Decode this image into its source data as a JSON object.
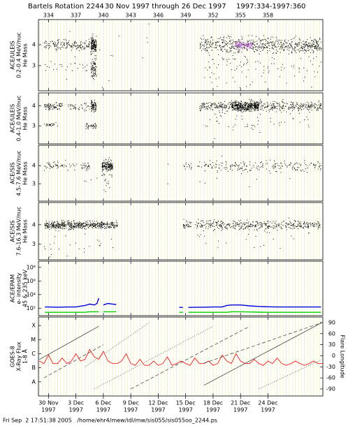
{
  "title": [
    "Bartels Rotation 2244",
    "30 Nov 1997 through 26 Dec 1997",
    "1997:334-1997:360"
  ],
  "footer": "Fri Sep  2 17:51:38 2005   /home/ehr4/mew/idl/mw/sis055/sis055oo_2244.ps",
  "xaxis": {
    "xlim": [
      332.9,
      364
    ],
    "top_ticks": [
      334,
      337,
      340,
      343,
      346,
      349,
      352,
      355,
      358
    ],
    "bottom_ticks": [
      {
        "value": 334,
        "label": "30 Nov",
        "year": "1997"
      },
      {
        "value": 337,
        "label": "3 Dec",
        "year": "1997"
      },
      {
        "value": 340,
        "label": "6 Dec",
        "year": "1997"
      },
      {
        "value": 343,
        "label": "9 Dec",
        "year": "1997"
      },
      {
        "value": 346,
        "label": "12 Dec",
        "year": "1997"
      },
      {
        "value": 349,
        "label": "15 Dec",
        "year": "1997"
      },
      {
        "value": 352,
        "label": "18 Dec",
        "year": "1997"
      },
      {
        "value": 355,
        "label": "21 Dec",
        "year": "1997"
      },
      {
        "value": 358,
        "label": "24 Dec",
        "year": "1997"
      }
    ]
  },
  "chart_data": [
    {
      "type": "cluster",
      "ylabel": [
        "ACE/ULEIS",
        "0.2-0.4 MeV/nuc",
        "He Mass"
      ],
      "ylim": [
        1.8,
        5.2
      ],
      "yticks": [
        4,
        3
      ],
      "clusters": [
        {
          "x0": 333.5,
          "x1": 338.5,
          "y": 4.0,
          "spread": 0.12,
          "points": 150,
          "color": "#000000"
        },
        {
          "x0": 333.5,
          "x1": 338.5,
          "y": 3.0,
          "spread": 0.1,
          "points": 25,
          "color": "#000000"
        },
        {
          "x0": 338.6,
          "x1": 339.2,
          "y": 4.0,
          "spread": 0.2,
          "points": 150,
          "color": "#000000"
        },
        {
          "x0": 338.6,
          "x1": 339.2,
          "y": 2.9,
          "spread": 0.25,
          "points": 80,
          "color": "#000000"
        },
        {
          "x0": 334,
          "x1": 345,
          "y": 3.5,
          "spread": 0.9,
          "points": 25,
          "color": "#000000"
        },
        {
          "x0": 350.5,
          "x1": 363.8,
          "y": 4.0,
          "spread": 0.18,
          "points": 600,
          "color": "#000000"
        },
        {
          "x0": 351,
          "x1": 363.8,
          "y": 3.0,
          "spread": 0.5,
          "points": 120,
          "color": "#000000"
        },
        {
          "x0": 354.4,
          "x1": 356.2,
          "y": 4.0,
          "spread": 0.08,
          "points": 120,
          "color": "#c060e0"
        }
      ]
    },
    {
      "type": "cluster",
      "ylabel": [
        "ACE/ULEIS",
        "0.4-1.0 MeV/nuc",
        "He Mass"
      ],
      "ylim": [
        2.1,
        4.65
      ],
      "yticks": [
        4,
        3
      ],
      "clusters": [
        {
          "x0": 333.5,
          "x1": 335.5,
          "y": 4.0,
          "spread": 0.08,
          "points": 80,
          "color": "#000000"
        },
        {
          "x0": 336,
          "x1": 338.5,
          "y": 4.0,
          "spread": 0.1,
          "points": 40,
          "color": "#000000"
        },
        {
          "x0": 338.6,
          "x1": 339.2,
          "y": 4.0,
          "spread": 0.15,
          "points": 80,
          "color": "#000000"
        },
        {
          "x0": 333.5,
          "x1": 335,
          "y": 3.05,
          "spread": 0.05,
          "points": 25,
          "color": "#000000"
        },
        {
          "x0": 338,
          "x1": 339.2,
          "y": 3.0,
          "spread": 0.08,
          "points": 40,
          "color": "#000000"
        },
        {
          "x0": 350.5,
          "x1": 363.8,
          "y": 4.0,
          "spread": 0.12,
          "points": 500,
          "color": "#000000"
        },
        {
          "x0": 354,
          "x1": 357,
          "y": 4.0,
          "spread": 0.12,
          "points": 300,
          "color": "#000000"
        },
        {
          "x0": 351,
          "x1": 363,
          "y": 3.3,
          "spread": 0.4,
          "points": 60,
          "color": "#000000"
        }
      ]
    },
    {
      "type": "cluster",
      "ylabel": [
        "ACE/SIS",
        "4.5-7.6 MeV/nuc",
        "He Mass"
      ],
      "ylim": [
        2.04,
        5.12
      ],
      "yticks": [
        4,
        3
      ],
      "clusters": [
        {
          "x0": 333.5,
          "x1": 338.5,
          "y": 4.0,
          "spread": 0.12,
          "points": 80,
          "color": "#000000"
        },
        {
          "x0": 339.8,
          "x1": 341,
          "y": 4.0,
          "spread": 0.12,
          "points": 150,
          "color": "#000000"
        },
        {
          "x0": 339.8,
          "x1": 341,
          "y": 3.5,
          "spread": 0.5,
          "points": 30,
          "color": "#000000"
        },
        {
          "x0": 348.7,
          "x1": 349.6,
          "y": 3.95,
          "spread": 0.1,
          "points": 15,
          "color": "#000000"
        },
        {
          "x0": 350,
          "x1": 363.8,
          "y": 4.0,
          "spread": 0.15,
          "points": 200,
          "color": "#000000"
        },
        {
          "x0": 334,
          "x1": 363,
          "y": 3.4,
          "spread": 0.5,
          "points": 20,
          "color": "#000000"
        }
      ]
    },
    {
      "type": "cluster",
      "ylabel": [
        "ACE/SIS",
        "7.6-16.3 MeV/nuc",
        "He Mass"
      ],
      "ylim": [
        2.2,
        5.14
      ],
      "yticks": [
        4,
        3
      ],
      "clusters": [
        {
          "x0": 333.5,
          "x1": 341.5,
          "y": 4.0,
          "spread": 0.1,
          "points": 500,
          "color": "#000000"
        },
        {
          "x0": 333.5,
          "x1": 341.5,
          "y": 3.3,
          "spread": 0.4,
          "points": 30,
          "color": "#000000"
        },
        {
          "x0": 348.7,
          "x1": 349.6,
          "y": 4.0,
          "spread": 0.1,
          "points": 30,
          "color": "#000000"
        },
        {
          "x0": 350,
          "x1": 363.8,
          "y": 4.0,
          "spread": 0.12,
          "points": 400,
          "color": "#000000"
        },
        {
          "x0": 350,
          "x1": 363.8,
          "y": 3.3,
          "spread": 0.4,
          "points": 25,
          "color": "#000000"
        }
      ]
    },
    {
      "type": "line",
      "ylabel": [
        "ACE/EPAM",
        "e- intensity",
        "45 & 235 keV"
      ],
      "log": true,
      "ylim": [
        8,
        800000000
      ],
      "yticks": [
        {
          "value": 100000000,
          "label": "10⁸"
        },
        {
          "value": 1000000,
          "label": "10⁶"
        },
        {
          "value": 10000,
          "label": "10⁴"
        },
        {
          "value": 100,
          "label": "10²"
        }
      ],
      "x": [
        333.6,
        334,
        335,
        336,
        337,
        337.5,
        338,
        338.5,
        339,
        339.3,
        339.5,
        339.7,
        340,
        340.5,
        341,
        341.4,
        345,
        348.3,
        348.7,
        349,
        349.3,
        349.6,
        350,
        351,
        352,
        353,
        353.5,
        354,
        355,
        356,
        357,
        358,
        359,
        360,
        361,
        362,
        363.8
      ],
      "series": [
        {
          "color": "#0000e0",
          "values": [
            150,
            150,
            140,
            150,
            150,
            200,
            250,
            400,
            300,
            500,
            3000,
            null,
            300,
            500,
            400,
            350,
            null,
            130,
            130,
            null,
            130,
            130,
            140,
            140,
            150,
            150,
            250,
            300,
            300,
            220,
            180,
            160,
            150,
            150,
            150,
            150,
            150
          ]
        },
        {
          "color": "#00d000",
          "values": [
            25,
            25,
            25,
            25,
            25,
            25,
            25,
            30,
            30,
            30,
            30,
            null,
            30,
            30,
            30,
            30,
            null,
            25,
            25,
            null,
            25,
            25,
            25,
            25,
            25,
            25,
            25,
            30,
            30,
            28,
            26,
            25,
            25,
            25,
            25,
            25,
            25
          ]
        }
      ]
    },
    {
      "type": "goes",
      "ylabel": [
        "GOES-8",
        "X-Ray Flux",
        "1-8 Å"
      ],
      "y2label": "Flare Longitude",
      "log": true,
      "ylim": [
        1e-09,
        0.0004
      ],
      "yticks": [
        {
          "value": 0.0001,
          "label": "X"
        },
        {
          "value": 1e-05,
          "label": "M"
        },
        {
          "value": 1e-06,
          "label": "C"
        },
        {
          "value": 1e-07,
          "label": "B"
        },
        {
          "value": 1e-08,
          "label": "A"
        }
      ],
      "y2lim": [
        -109,
        105
      ],
      "y2ticks": [
        90,
        60,
        30,
        0,
        -30,
        -60,
        -90
      ],
      "x": [
        333,
        333.5,
        334,
        334.5,
        335,
        335.5,
        336,
        336.5,
        337,
        337.5,
        338,
        338.5,
        339,
        339.5,
        340,
        340.5,
        341,
        341.5,
        342,
        342.5,
        343,
        343.5,
        344,
        344.5,
        345,
        345.5,
        346,
        346.5,
        347,
        347.5,
        348,
        348.5,
        349,
        349.5,
        350,
        350.5,
        351,
        351.5,
        352,
        352.5,
        353,
        353.5,
        354,
        354.5,
        355,
        355.5,
        356,
        356.5,
        357,
        357.5,
        358,
        358.5,
        359,
        359.5,
        360,
        360.5,
        361,
        361.5,
        362,
        362.5,
        363,
        363.5,
        364
      ],
      "series": [
        {
          "color": "#ff0000",
          "values": [
            3e-07,
            2e-07,
            8e-07,
            2e-07,
            2e-07,
            5e-07,
            2e-07,
            3e-07,
            1e-06,
            3e-07,
            4e-07,
            2e-06,
            6e-07,
            4e-07,
            1.5e-06,
            3e-07,
            2e-07,
            2e-07,
            3e-07,
            1e-06,
            2e-07,
            1.5e-07,
            4e-07,
            1.5e-07,
            1.5e-07,
            3e-07,
            1.5e-07,
            2e-07,
            6e-07,
            1.5e-07,
            2e-07,
            3e-07,
            2e-07,
            1.5e-07,
            5e-07,
            2e-07,
            2e-07,
            3e-07,
            1.5e-07,
            2e-07,
            8e-07,
            3e-07,
            2e-07,
            1e-06,
            3e-07,
            2e-07,
            2e-07,
            4e-07,
            2e-07,
            1.5e-07,
            3e-07,
            2e-07,
            5e-07,
            2e-07,
            1.5e-07,
            2e-07,
            3e-07,
            2e-07,
            1.5e-07,
            2e-07,
            3e-07,
            2e-07,
            2e-07
          ]
        }
      ],
      "tracks": [
        {
          "x": [
            333,
            339.5
          ],
          "lon": [
            -10,
            80
          ],
          "style": "solid"
        },
        {
          "x": [
            333.5,
            340
          ],
          "lon": [
            -60,
            30
          ],
          "style": "dashed"
        },
        {
          "x": [
            338,
            345
          ],
          "lon": [
            -30,
            90
          ],
          "style": "dotted"
        },
        {
          "x": [
            339,
            352
          ],
          "lon": [
            -90,
            80
          ],
          "style": "dotted"
        },
        {
          "x": [
            343,
            356
          ],
          "lon": [
            -90,
            80
          ],
          "style": "dashed"
        },
        {
          "x": [
            351,
            363.9
          ],
          "lon": [
            -80,
            90
          ],
          "style": "solid"
        },
        {
          "x": [
            351,
            363.9
          ],
          "lon": [
            -20,
            90
          ],
          "style": "dashed"
        },
        {
          "x": [
            357,
            363.9
          ],
          "lon": [
            -90,
            -10
          ],
          "style": "dotted"
        }
      ]
    }
  ]
}
